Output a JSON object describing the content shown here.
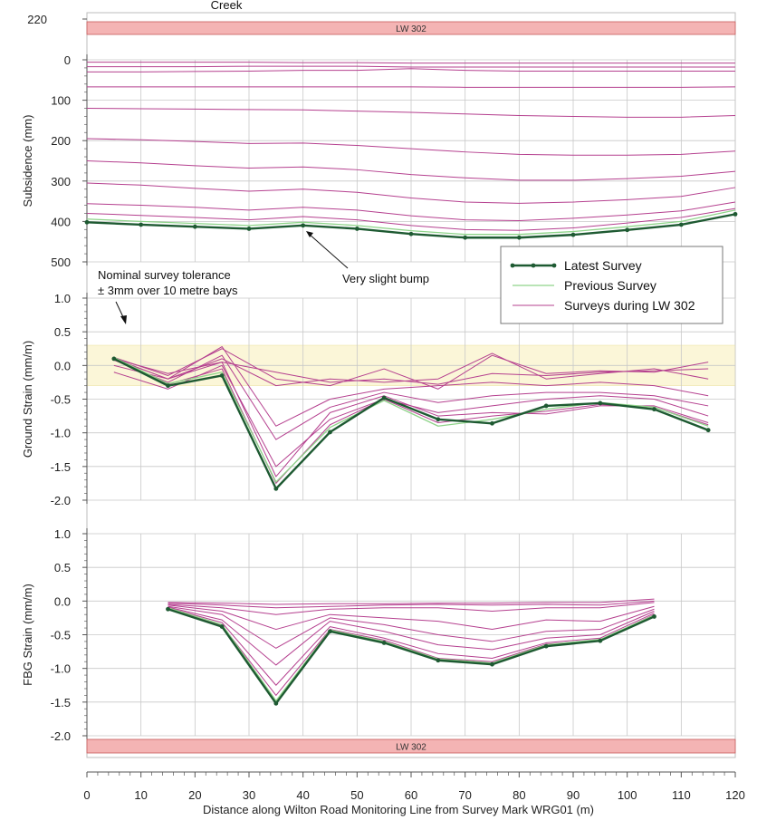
{
  "chart_data": [
    {
      "type": "line",
      "name": "subsidence",
      "ylabel": "Subsidence (mm)",
      "ylim": [
        500,
        0
      ],
      "yticks": [
        0,
        100,
        200,
        300,
        400,
        500
      ],
      "xlim": [
        0,
        120
      ],
      "grid": true,
      "top_label": "Creek",
      "band": {
        "label": "LW 302",
        "x": [
          0,
          120
        ],
        "color": "#f4b4b4"
      },
      "top_tick": "220",
      "annotations": [
        {
          "text": "Very slight bump",
          "x": 40,
          "y": 410,
          "text_x": 46,
          "text_y": 540
        }
      ],
      "latest": {
        "x": [
          0,
          10,
          20,
          30,
          40,
          50,
          60,
          70,
          80,
          90,
          100,
          110,
          120
        ],
        "y": [
          402,
          408,
          413,
          418,
          410,
          418,
          431,
          440,
          440,
          433,
          421,
          408,
          382
        ]
      },
      "previous": {
        "x": [
          0,
          10,
          20,
          30,
          40,
          50,
          60,
          70,
          80,
          90,
          100,
          110,
          120
        ],
        "y": [
          394,
          400,
          405,
          410,
          402,
          410,
          423,
          432,
          432,
          425,
          413,
          400,
          372
        ]
      },
      "surveys": [
        {
          "x": [
            0,
            10,
            20,
            30,
            40,
            50,
            60,
            70,
            80,
            90,
            100,
            110,
            120
          ],
          "y": [
            6,
            6,
            6,
            6,
            7,
            7,
            8,
            8,
            8,
            8,
            8,
            8,
            8
          ]
        },
        {
          "x": [
            0,
            10,
            20,
            30,
            40,
            50,
            60,
            70,
            80,
            90,
            100,
            110,
            120
          ],
          "y": [
            17,
            17,
            17,
            16,
            16,
            16,
            18,
            18,
            18,
            18,
            18,
            18,
            18
          ]
        },
        {
          "x": [
            0,
            10,
            20,
            30,
            40,
            50,
            60,
            70,
            80,
            90,
            100,
            110,
            120
          ],
          "y": [
            30,
            30,
            29,
            28,
            26,
            26,
            22,
            26,
            28,
            28,
            28,
            28,
            28
          ]
        },
        {
          "x": [
            0,
            10,
            20,
            30,
            40,
            50,
            60,
            70,
            80,
            90,
            100,
            110,
            120
          ],
          "y": [
            67,
            67,
            67,
            67,
            67,
            67,
            67,
            68,
            68,
            68,
            68,
            68,
            67
          ]
        },
        {
          "x": [
            0,
            10,
            20,
            30,
            40,
            50,
            60,
            70,
            80,
            90,
            100,
            110,
            120
          ],
          "y": [
            120,
            121,
            122,
            123,
            124,
            127,
            130,
            134,
            138,
            140,
            142,
            142,
            138
          ]
        },
        {
          "x": [
            0,
            10,
            20,
            30,
            40,
            50,
            60,
            70,
            80,
            90,
            100,
            110,
            120
          ],
          "y": [
            195,
            198,
            202,
            207,
            206,
            212,
            220,
            228,
            234,
            236,
            236,
            234,
            226
          ]
        },
        {
          "x": [
            0,
            10,
            20,
            30,
            40,
            50,
            60,
            70,
            80,
            90,
            100,
            110,
            120
          ],
          "y": [
            250,
            255,
            262,
            268,
            265,
            272,
            284,
            292,
            298,
            298,
            294,
            288,
            276
          ]
        },
        {
          "x": [
            0,
            10,
            20,
            30,
            40,
            50,
            60,
            70,
            80,
            90,
            100,
            110,
            120
          ],
          "y": [
            305,
            310,
            318,
            325,
            320,
            328,
            342,
            352,
            355,
            352,
            346,
            338,
            316
          ]
        },
        {
          "x": [
            0,
            10,
            20,
            30,
            40,
            50,
            60,
            70,
            80,
            90,
            100,
            110,
            120
          ],
          "y": [
            356,
            360,
            365,
            372,
            365,
            372,
            386,
            396,
            398,
            392,
            384,
            374,
            352
          ]
        },
        {
          "x": [
            0,
            10,
            20,
            30,
            40,
            50,
            60,
            70,
            80,
            90,
            100,
            110,
            120
          ],
          "y": [
            380,
            385,
            390,
            396,
            388,
            396,
            410,
            420,
            422,
            416,
            404,
            390,
            368
          ]
        }
      ]
    },
    {
      "type": "line",
      "name": "ground-strain",
      "ylabel": "Ground Strain (mm/m)",
      "ylim": [
        -2.0,
        1.0
      ],
      "yticks": [
        -2.0,
        -1.5,
        -1.0,
        -0.5,
        0.0,
        0.5,
        1.0
      ],
      "ytick_labels": [
        "-2.0",
        "-1.5",
        "-1.0",
        "-0.5",
        "0.0",
        "0.5",
        "1.0"
      ],
      "xlim": [
        0,
        120
      ],
      "grid": true,
      "tolerance_band": {
        "y": [
          -0.3,
          0.3
        ],
        "color": "#fbf6d8"
      },
      "annotations": [
        {
          "text": "Nominal survey tolerance",
          "x": 7,
          "y": 0.85
        },
        {
          "text": "± 3mm over 10 metre bays",
          "x": 7,
          "y": 1.0
        }
      ],
      "latest": {
        "x": [
          5,
          15,
          25,
          35,
          45,
          55,
          65,
          75,
          85,
          95,
          105,
          115
        ],
        "y": [
          0.1,
          -0.3,
          -0.15,
          -1.83,
          -0.99,
          -0.48,
          -0.8,
          -0.86,
          -0.6,
          -0.56,
          -0.65,
          -0.96
        ]
      },
      "previous": {
        "x": [
          5,
          15,
          25,
          35,
          45,
          55,
          65,
          75,
          85,
          95,
          105,
          115
        ],
        "y": [
          0.12,
          -0.27,
          -0.1,
          -1.73,
          -0.92,
          -0.52,
          -0.9,
          -0.8,
          -0.65,
          -0.55,
          -0.62,
          -0.9
        ]
      },
      "surveys": [
        {
          "x": [
            5,
            15,
            25,
            35,
            45,
            55,
            65,
            75,
            85,
            95,
            105,
            115
          ],
          "y": [
            0.1,
            -0.12,
            0.05,
            -0.1,
            -0.25,
            -0.2,
            -0.28,
            -0.12,
            -0.15,
            -0.1,
            -0.08,
            -0.05
          ]
        },
        {
          "x": [
            5,
            15,
            25,
            35,
            45,
            55,
            65,
            75,
            85,
            95,
            105,
            115
          ],
          "y": [
            0.12,
            -0.15,
            0.25,
            -0.2,
            -0.3,
            -0.05,
            -0.35,
            0.15,
            -0.12,
            -0.08,
            -0.1,
            0.05
          ]
        },
        {
          "x": [
            5,
            15,
            25,
            35,
            45,
            55,
            65,
            75,
            85,
            95,
            105,
            115
          ],
          "y": [
            0.0,
            -0.2,
            0.1,
            -0.3,
            -0.2,
            -0.25,
            -0.2,
            0.18,
            -0.2,
            -0.12,
            -0.05,
            -0.2
          ]
        },
        {
          "x": [
            5,
            15,
            25,
            35,
            45,
            55,
            65,
            75,
            85,
            95,
            105,
            115
          ],
          "y": [
            0.1,
            -0.2,
            0.28,
            -0.9,
            -0.5,
            -0.35,
            -0.3,
            -0.25,
            -0.3,
            -0.25,
            -0.3,
            -0.45
          ]
        },
        {
          "x": [
            5,
            15,
            25,
            35,
            45,
            55,
            65,
            75,
            85,
            95,
            105,
            115
          ],
          "y": [
            0.08,
            -0.25,
            0.15,
            -1.1,
            -0.62,
            -0.4,
            -0.55,
            -0.45,
            -0.4,
            -0.4,
            -0.45,
            -0.6
          ]
        },
        {
          "x": [
            5,
            15,
            25,
            35,
            45,
            55,
            65,
            75,
            85,
            95,
            105,
            115
          ],
          "y": [
            -0.1,
            -0.35,
            0.0,
            -1.5,
            -0.8,
            -0.5,
            -0.7,
            -0.6,
            -0.5,
            -0.45,
            -0.5,
            -0.75
          ]
        },
        {
          "x": [
            5,
            15,
            25,
            35,
            45,
            55,
            65,
            75,
            85,
            95,
            105,
            115
          ],
          "y": [
            0.1,
            -0.2,
            0.05,
            -1.65,
            -0.7,
            -0.45,
            -0.75,
            -0.7,
            -0.72,
            -0.6,
            -0.6,
            -0.85
          ]
        },
        {
          "x": [
            5,
            15,
            25,
            35,
            45,
            55,
            65,
            75,
            85,
            95,
            105,
            115
          ],
          "y": [
            0.1,
            -0.28,
            -0.05,
            -1.75,
            -0.88,
            -0.5,
            -0.85,
            -0.75,
            -0.68,
            -0.58,
            -0.62,
            -0.88
          ]
        }
      ]
    },
    {
      "type": "line",
      "name": "fbg-strain",
      "ylabel": "FBG Strain (mm/m)",
      "ylim": [
        -2.0,
        1.0
      ],
      "yticks": [
        -2.0,
        -1.5,
        -1.0,
        -0.5,
        0.0,
        0.5,
        1.0
      ],
      "ytick_labels": [
        "-2.0",
        "-1.5",
        "-1.0",
        "-0.5",
        "0.0",
        "0.5",
        "1.0"
      ],
      "xlim": [
        0,
        120
      ],
      "xticks": [
        0,
        10,
        20,
        30,
        40,
        50,
        60,
        70,
        80,
        90,
        100,
        110,
        120
      ],
      "xlabel": "Distance along Wilton Road Monitoring Line from Survey Mark WRG01 (m)",
      "grid": true,
      "band": {
        "label": "LW 302",
        "x": [
          0,
          120
        ],
        "color": "#f4b4b4"
      },
      "latest": {
        "x": [
          15,
          25,
          35,
          45,
          55,
          65,
          75,
          85,
          95,
          105
        ],
        "y": [
          -0.12,
          -0.38,
          -1.52,
          -0.45,
          -0.62,
          -0.88,
          -0.94,
          -0.67,
          -0.59,
          -0.23
        ]
      },
      "previous": {
        "x": [
          15,
          25,
          35,
          45,
          55,
          65,
          75,
          85,
          95,
          105
        ],
        "y": [
          -0.1,
          -0.35,
          -1.48,
          -0.43,
          -0.6,
          -0.86,
          -0.92,
          -0.65,
          -0.57,
          -0.21
        ]
      },
      "surveys": [
        {
          "x": [
            15,
            25,
            35,
            45,
            55,
            65,
            75,
            85,
            95,
            105
          ],
          "y": [
            -0.02,
            -0.03,
            -0.05,
            -0.04,
            -0.04,
            -0.03,
            -0.03,
            -0.02,
            -0.02,
            0.03
          ]
        },
        {
          "x": [
            15,
            25,
            35,
            45,
            55,
            65,
            75,
            85,
            95,
            105
          ],
          "y": [
            -0.03,
            -0.06,
            -0.1,
            -0.08,
            -0.06,
            -0.05,
            -0.06,
            -0.05,
            -0.06,
            0.0
          ]
        },
        {
          "x": [
            15,
            25,
            35,
            45,
            55,
            65,
            75,
            85,
            95,
            105
          ],
          "y": [
            -0.05,
            -0.1,
            -0.2,
            -0.12,
            -0.1,
            -0.1,
            -0.15,
            -0.1,
            -0.1,
            -0.02
          ]
        },
        {
          "x": [
            15,
            25,
            35,
            45,
            55,
            65,
            75,
            85,
            95,
            105
          ],
          "y": [
            -0.06,
            -0.15,
            -0.42,
            -0.2,
            -0.25,
            -0.3,
            -0.42,
            -0.28,
            -0.3,
            -0.08
          ]
        },
        {
          "x": [
            15,
            25,
            35,
            45,
            55,
            65,
            75,
            85,
            95,
            105
          ],
          "y": [
            -0.08,
            -0.2,
            -0.7,
            -0.25,
            -0.35,
            -0.5,
            -0.6,
            -0.45,
            -0.42,
            -0.12
          ]
        },
        {
          "x": [
            15,
            25,
            35,
            45,
            55,
            65,
            75,
            85,
            95,
            105
          ],
          "y": [
            -0.09,
            -0.28,
            -0.95,
            -0.3,
            -0.45,
            -0.65,
            -0.72,
            -0.55,
            -0.5,
            -0.15
          ]
        },
        {
          "x": [
            15,
            25,
            35,
            45,
            55,
            65,
            75,
            85,
            95,
            105
          ],
          "y": [
            -0.1,
            -0.32,
            -1.25,
            -0.38,
            -0.55,
            -0.78,
            -0.85,
            -0.62,
            -0.55,
            -0.18
          ]
        },
        {
          "x": [
            15,
            25,
            35,
            45,
            55,
            65,
            75,
            85,
            95,
            105
          ],
          "y": [
            -0.11,
            -0.36,
            -1.4,
            -0.42,
            -0.58,
            -0.85,
            -0.9,
            -0.64,
            -0.58,
            -0.2
          ]
        }
      ]
    }
  ],
  "legend": {
    "placement": "right, between top and middle panels",
    "entries": [
      {
        "name": "Latest Survey",
        "color": "#1e5a32"
      },
      {
        "name": "Previous Survey",
        "color": "#8fd48a"
      },
      {
        "name": "Surveys during LW 302",
        "color": "#b5408f"
      }
    ]
  },
  "colors": {
    "latest": "#1e5a32",
    "previous": "#8fd48a",
    "survey": "#b5408f",
    "grid": "#c8c8c8",
    "band": "#f4b4b4",
    "tolerance": "#fbf6d8"
  }
}
